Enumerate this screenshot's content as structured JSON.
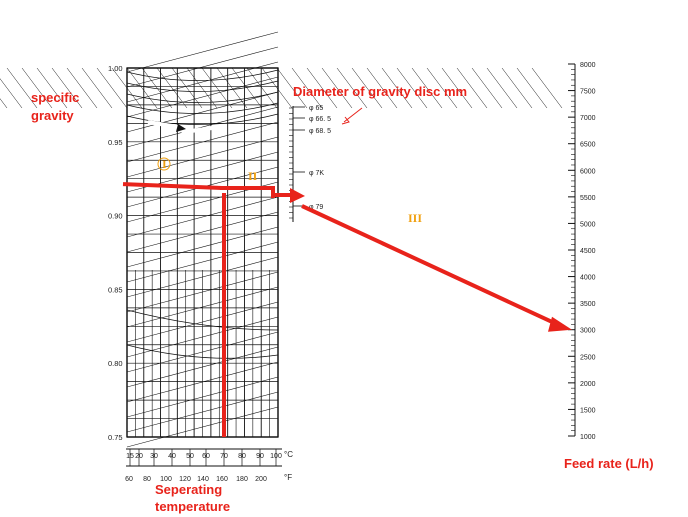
{
  "labels": {
    "specific_gravity_line1": "specific",
    "specific_gravity_line2": "gravity",
    "disc_title": "Diameter of gravity disc mm",
    "feed_rate": "Feed rate (L/h)",
    "sep_temp_line1": "Seperating",
    "sep_temp_line2": "temperature",
    "step_I": "I",
    "step_II": "II",
    "step_III": "III",
    "unit_c": "°C",
    "unit_f": "°F"
  },
  "colors": {
    "annotation_red": "#e8231b",
    "step_orange": "#f0a010",
    "grid": "#111111"
  },
  "chart_data": {
    "type": "nomogram",
    "specific_gravity_axis": {
      "ticks": [
        "1.00",
        "0.95",
        "0.90",
        "0.85",
        "0.80",
        "0.75"
      ],
      "range": [
        0.75,
        1.0
      ]
    },
    "temperature_c_axis": {
      "ticks": [
        "15",
        "20",
        "30",
        "40",
        "50",
        "60",
        "70",
        "80",
        "90",
        "100"
      ]
    },
    "temperature_f_axis": {
      "ticks": [
        "60",
        "80",
        "100",
        "120",
        "140",
        "160",
        "180",
        "200"
      ]
    },
    "gravity_disc_axis": {
      "ticks": [
        "φ 65",
        "φ 66. 5",
        "φ 68. 5",
        "φ 7K",
        "φ 79"
      ]
    },
    "feed_rate_axis": {
      "ticks": [
        "8000",
        "7500",
        "7000",
        "6500",
        "6000",
        "5500",
        "5000",
        "4500",
        "4000",
        "3500",
        "3000",
        "2500",
        "2000",
        "1500",
        "1000"
      ],
      "range": [
        1000,
        8000
      ]
    },
    "example_path": {
      "separating_temperature_c": 70,
      "specific_gravity": 0.92,
      "gravity_disc": "φ 79",
      "feed_rate_lph": 3000
    }
  }
}
